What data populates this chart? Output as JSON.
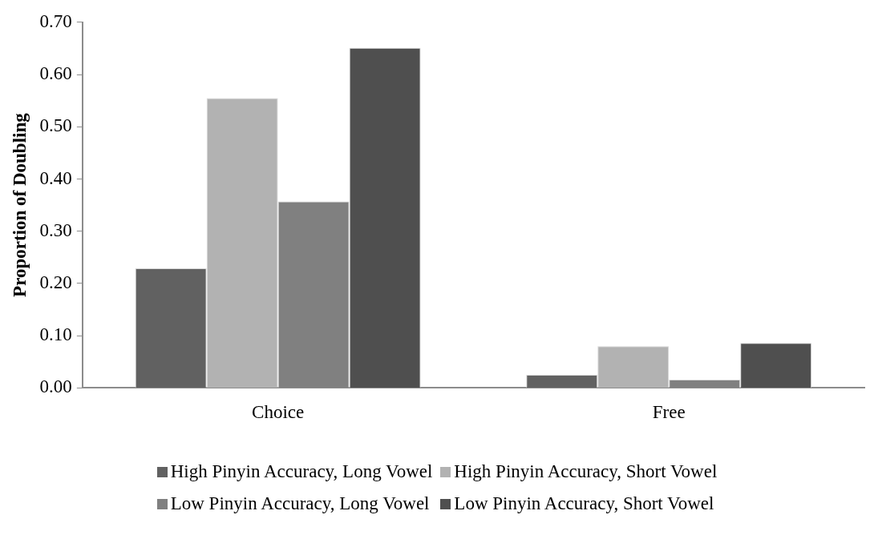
{
  "chart_data": {
    "type": "bar",
    "ylabel": "Proportion of Doubling",
    "categories": [
      "Choice",
      "Free"
    ],
    "series": [
      {
        "name": "High Pinyin Accuracy, Long Vowel",
        "color": "#616161",
        "values": [
          0.229,
          0.025
        ]
      },
      {
        "name": "High Pinyin Accuracy, Short Vowel",
        "color": "#b2b2b2",
        "values": [
          0.555,
          0.08
        ]
      },
      {
        "name": "Low Pinyin Accuracy, Long Vowel",
        "color": "#808080",
        "values": [
          0.357,
          0.016
        ]
      },
      {
        "name": "Low Pinyin Accuracy, Short Vowel",
        "color": "#4f4f4f",
        "values": [
          0.651,
          0.086
        ]
      }
    ],
    "ylim": [
      0,
      0.7
    ],
    "yticks": [
      {
        "value": 0,
        "label": "0.00"
      },
      {
        "value": 0.1,
        "label": "0.10"
      },
      {
        "value": 0.2,
        "label": "0.20"
      },
      {
        "value": 0.3,
        "label": "0.30"
      },
      {
        "value": 0.4,
        "label": "0.40"
      },
      {
        "value": 0.5,
        "label": "0.50"
      },
      {
        "value": 0.6,
        "label": "0.60"
      },
      {
        "value": 0.7,
        "label": "0.70"
      }
    ],
    "grid": false,
    "legend": "bottom"
  }
}
